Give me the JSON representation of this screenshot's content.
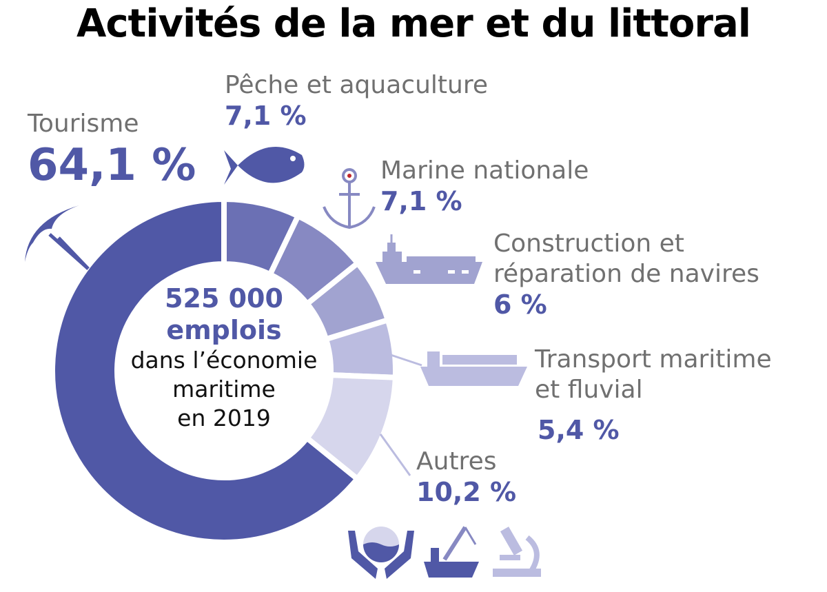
{
  "title": "Activités de la mer et du littoral",
  "center": {
    "total": "525 000",
    "unit": "emplois",
    "line1": "dans l’économie",
    "line2": "maritime",
    "line3": "en 2019"
  },
  "chart_data": {
    "type": "pie",
    "subtype": "donut",
    "title": "Activités de la mer et du littoral",
    "total_label": "525 000 emplois dans l’économie maritime en 2019",
    "slices": [
      {
        "label": "Tourisme",
        "value": 64.1,
        "display": "64,1 %",
        "color": "#5058a6"
      },
      {
        "label": "Pêche et aquaculture",
        "value": 7.1,
        "display": "7,1 %",
        "color": "#6b70b4"
      },
      {
        "label": "Marine nationale",
        "value": 7.1,
        "display": "7,1 %",
        "color": "#8789c2"
      },
      {
        "label": "Construction et réparation de navires",
        "value": 6,
        "display": "6 %",
        "color": "#a1a3d0"
      },
      {
        "label": "Transport maritime et fluvial",
        "value": 5.4,
        "display": "5,4 %",
        "color": "#bbbce0"
      },
      {
        "label": "Autres",
        "value": 10.2,
        "display": "10,2 %",
        "color": "#d6d6ec"
      }
    ]
  },
  "labels": {
    "tourisme": {
      "l1": "Tourisme",
      "pct": "64,1 %"
    },
    "peche": {
      "l1": "Pêche et aquaculture",
      "pct": "7,1 %"
    },
    "marine": {
      "l1": "Marine nationale",
      "pct": "7,1 %"
    },
    "construction": {
      "l1": "Construction et",
      "l2": "réparation de navires",
      "pct": "6 %"
    },
    "transport": {
      "l1": "Transport maritime",
      "l2": "et fluvial",
      "pct": "5,4 %"
    },
    "autres": {
      "l1": "Autres",
      "pct": "10,2 %"
    }
  },
  "icons": [
    "umbrella-icon",
    "fish-icon",
    "anchor-icon",
    "warship-icon",
    "cargo-ship-icon",
    "hands-ocean-icon",
    "offshore-rig-icon",
    "microscope-icon"
  ]
}
